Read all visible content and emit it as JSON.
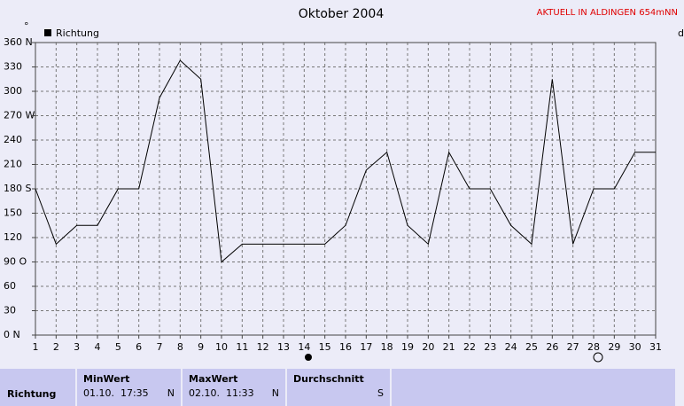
{
  "chart_data": {
    "type": "line",
    "title": "Oktober 2004",
    "subtitle": "AKTUELL IN ALDINGEN 654mNN",
    "y_label": "°",
    "right_label": "d",
    "x": [
      1,
      2,
      3,
      4,
      5,
      6,
      7,
      8,
      9,
      10,
      11,
      12,
      13,
      14,
      15,
      16,
      17,
      18,
      19,
      20,
      21,
      22,
      23,
      24,
      25,
      26,
      27,
      28,
      29,
      30,
      31
    ],
    "series": [
      {
        "name": "Richtung",
        "color": "#000000",
        "values": [
          180,
          112,
          135,
          135,
          180,
          180,
          292,
          338,
          315,
          90,
          112,
          112,
          112,
          112,
          112,
          135,
          203,
          225,
          135,
          112,
          225,
          180,
          180,
          135,
          112,
          315,
          112,
          180,
          180,
          225,
          225
        ]
      }
    ],
    "xlim": [
      1,
      31
    ],
    "xticks": [
      1,
      2,
      3,
      4,
      5,
      6,
      7,
      8,
      9,
      10,
      11,
      12,
      13,
      14,
      15,
      16,
      17,
      18,
      19,
      20,
      21,
      22,
      23,
      24,
      25,
      26,
      27,
      28,
      29,
      30,
      31
    ],
    "ylim": [
      0,
      360
    ],
    "yticks": [
      {
        "value": 0,
        "label": "0 N"
      },
      30,
      60,
      {
        "value": 90,
        "label": "90 O"
      },
      120,
      150,
      {
        "value": 180,
        "label": "180 S"
      },
      210,
      240,
      {
        "value": 270,
        "label": "270 W"
      },
      300,
      330,
      {
        "value": 360,
        "label": "360 N"
      }
    ],
    "grid": true
  },
  "table": {
    "headers": [
      "MinWert",
      "MaxWert",
      "Durchschnitt"
    ],
    "rows": [
      {
        "label": "Richtung",
        "min_time": "01.10.  17:35",
        "min_dir": "N",
        "max_time": "02.10.  11:33",
        "max_dir": "N",
        "avg": "S"
      }
    ]
  }
}
